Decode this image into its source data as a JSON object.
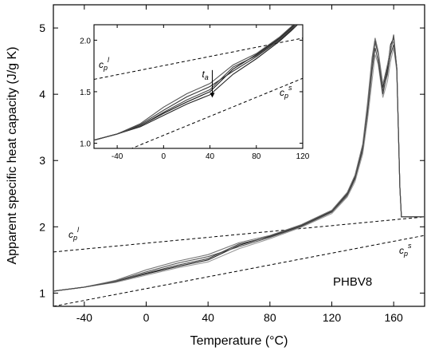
{
  "chart_data": [
    {
      "type": "line",
      "xlabel": "Temperature (°C)",
      "ylabel": "Apparent specific heat capacity (J/g K)",
      "xlim": [
        -60,
        180
      ],
      "ylim": [
        0.8,
        5.35
      ],
      "x_ticks": [
        -40,
        0,
        40,
        80,
        120,
        160
      ],
      "y_ticks": [
        1,
        2,
        3,
        4,
        5
      ],
      "x_tick_labels": [
        "-40",
        "0",
        "40",
        "80",
        "120",
        "160"
      ],
      "y_tick_labels": [
        "1",
        "2",
        "3",
        "4",
        "5"
      ],
      "annotation": "PHBV8",
      "series": [
        {
          "x": [
            -60,
            -40,
            -20,
            0,
            20,
            40,
            60,
            80,
            100,
            120,
            130,
            135,
            140,
            143,
            146,
            148,
            150,
            153,
            156,
            158,
            160,
            162,
            163,
            164,
            165,
            170,
            180
          ],
          "y": [
            1.03,
            1.09,
            1.17,
            1.29,
            1.4,
            1.5,
            1.72,
            1.86,
            2.02,
            2.24,
            2.5,
            2.75,
            3.2,
            3.8,
            4.5,
            4.82,
            4.62,
            4.1,
            4.4,
            4.75,
            4.85,
            4.4,
            3.5,
            2.6,
            2.15,
            2.15,
            2.15
          ]
        },
        {
          "x": [
            -60,
            -40,
            -20,
            0,
            20,
            40,
            60,
            80,
            100,
            120,
            130,
            135,
            140,
            143,
            146,
            148,
            150,
            153,
            156,
            158,
            160,
            162,
            163,
            164,
            165,
            170,
            180
          ],
          "y": [
            1.03,
            1.09,
            1.18,
            1.32,
            1.45,
            1.55,
            1.7,
            1.84,
            2.0,
            2.22,
            2.47,
            2.72,
            3.15,
            3.75,
            4.45,
            4.78,
            4.6,
            4.05,
            4.3,
            4.65,
            4.9,
            4.4,
            3.5,
            2.6,
            2.15,
            2.15,
            2.15
          ]
        },
        {
          "x": [
            -60,
            -40,
            -20,
            0,
            20,
            40,
            60,
            80,
            100,
            120,
            130,
            135,
            140,
            143,
            146,
            148,
            150,
            153,
            156,
            158,
            160,
            162,
            163,
            164,
            165,
            170,
            180
          ],
          "y": [
            1.03,
            1.09,
            1.19,
            1.35,
            1.48,
            1.58,
            1.76,
            1.87,
            2.03,
            2.25,
            2.52,
            2.78,
            3.25,
            3.85,
            4.55,
            4.85,
            4.65,
            4.15,
            4.45,
            4.7,
            4.8,
            4.4,
            3.5,
            2.6,
            2.15,
            2.15,
            2.15
          ]
        },
        {
          "x": [
            -60,
            -40,
            -20,
            0,
            20,
            40,
            60,
            80,
            100,
            120,
            130,
            135,
            140,
            143,
            146,
            148,
            150,
            153,
            156,
            158,
            160,
            162,
            163,
            164,
            165,
            170,
            180
          ],
          "y": [
            1.03,
            1.09,
            1.16,
            1.27,
            1.38,
            1.47,
            1.67,
            1.82,
            1.99,
            2.2,
            2.45,
            2.68,
            3.1,
            3.6,
            4.2,
            4.6,
            4.45,
            3.95,
            4.2,
            4.5,
            4.7,
            4.35,
            3.5,
            2.6,
            2.15,
            2.15,
            2.15
          ]
        },
        {
          "x": [
            -60,
            -40,
            -20,
            0,
            20,
            40,
            60,
            80,
            100,
            120,
            130,
            135,
            140,
            143,
            146,
            148,
            150,
            153,
            156,
            158,
            160,
            162,
            163,
            164,
            165,
            170,
            180
          ],
          "y": [
            1.03,
            1.09,
            1.17,
            1.3,
            1.42,
            1.52,
            1.74,
            1.85,
            2.01,
            2.23,
            2.49,
            2.73,
            3.18,
            3.7,
            4.35,
            4.7,
            4.5,
            4.0,
            4.35,
            4.6,
            4.75,
            4.4,
            3.5,
            2.6,
            2.15,
            2.15,
            2.15
          ]
        }
      ],
      "baselines": [
        {
          "label": "c",
          "sup": "l",
          "sub": "p",
          "x": [
            -60,
            180
          ],
          "y": [
            1.62,
            2.15
          ]
        },
        {
          "label": "c",
          "sup": "s",
          "sub": "p",
          "x": [
            -60,
            180
          ],
          "y": [
            0.8,
            1.87
          ]
        }
      ]
    },
    {
      "type": "line",
      "xlim": [
        -60,
        120
      ],
      "ylim": [
        0.95,
        2.15
      ],
      "x_ticks": [
        -40,
        0,
        40,
        80,
        120
      ],
      "y_ticks": [
        1.0,
        1.5,
        2.0
      ],
      "x_tick_labels": [
        "-40",
        "0",
        "40",
        "80",
        "120"
      ],
      "y_tick_labels": [
        "1.0",
        "1.5",
        "2.0"
      ],
      "annotation": {
        "label": "t",
        "sub": "a",
        "x": 42,
        "y_start": 1.71,
        "y_end": 1.45
      },
      "series": [
        {
          "x": [
            -60,
            -40,
            -20,
            0,
            20,
            40,
            60,
            80,
            100,
            110,
            120
          ],
          "y": [
            1.03,
            1.09,
            1.17,
            1.29,
            1.4,
            1.5,
            1.72,
            1.86,
            2.02,
            2.12,
            2.24
          ]
        },
        {
          "x": [
            -60,
            -40,
            -20,
            0,
            20,
            40,
            60,
            80,
            100,
            110,
            120
          ],
          "y": [
            1.03,
            1.09,
            1.18,
            1.32,
            1.45,
            1.55,
            1.7,
            1.84,
            2.0,
            2.1,
            2.22
          ]
        },
        {
          "x": [
            -60,
            -40,
            -20,
            0,
            20,
            40,
            60,
            80,
            100,
            110,
            120
          ],
          "y": [
            1.03,
            1.09,
            1.19,
            1.35,
            1.48,
            1.58,
            1.76,
            1.87,
            2.03,
            2.13,
            2.25
          ]
        },
        {
          "x": [
            -60,
            -40,
            -20,
            0,
            20,
            40,
            60,
            80,
            100,
            110,
            120
          ],
          "y": [
            1.03,
            1.09,
            1.16,
            1.27,
            1.38,
            1.47,
            1.67,
            1.82,
            1.99,
            2.09,
            2.2
          ]
        },
        {
          "x": [
            -60,
            -40,
            -20,
            0,
            20,
            40,
            60,
            80,
            100,
            110,
            120
          ],
          "y": [
            1.03,
            1.09,
            1.17,
            1.3,
            1.42,
            1.52,
            1.74,
            1.85,
            2.01,
            2.11,
            2.23
          ]
        }
      ],
      "baselines": [
        {
          "label": "c",
          "sup": "l",
          "sub": "p",
          "x": [
            -60,
            120
          ],
          "y": [
            1.62,
            2.02
          ]
        },
        {
          "label": "c",
          "sup": "s",
          "sub": "p",
          "x": [
            -60,
            120
          ],
          "y": [
            0.8,
            1.63
          ]
        }
      ]
    }
  ]
}
